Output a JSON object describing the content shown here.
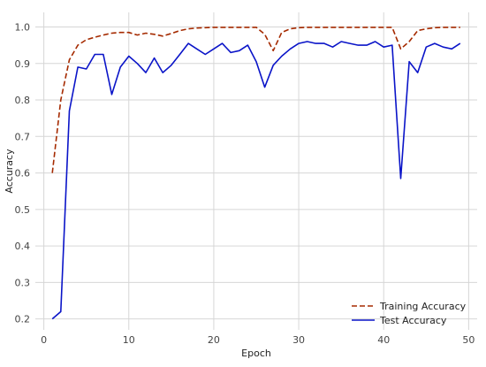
{
  "chart_data": {
    "type": "line",
    "xlabel": "Epoch",
    "ylabel": "Accuracy",
    "xlim": [
      -1,
      51
    ],
    "ylim": [
      0.17,
      1.04
    ],
    "xticks": [
      0,
      10,
      20,
      30,
      40,
      50
    ],
    "yticks": [
      0.2,
      0.3,
      0.4,
      0.5,
      0.6,
      0.7,
      0.8,
      0.9,
      1.0
    ],
    "grid": true,
    "legend_position": "bottom-right",
    "x": [
      1,
      2,
      3,
      4,
      5,
      6,
      7,
      8,
      9,
      10,
      11,
      12,
      13,
      14,
      15,
      16,
      17,
      18,
      19,
      20,
      21,
      22,
      23,
      24,
      25,
      26,
      27,
      28,
      29,
      30,
      31,
      32,
      33,
      34,
      35,
      36,
      37,
      38,
      39,
      40,
      41,
      42,
      43,
      44,
      45,
      46,
      47,
      48,
      49
    ],
    "series": [
      {
        "name": "Training Accuracy",
        "color": "#a52a00",
        "dash": "dashed",
        "values": [
          0.6,
          0.8,
          0.91,
          0.95,
          0.965,
          0.972,
          0.978,
          0.983,
          0.985,
          0.985,
          0.978,
          0.983,
          0.98,
          0.975,
          0.982,
          0.99,
          0.995,
          0.997,
          0.998,
          0.999,
          0.999,
          0.999,
          0.999,
          0.999,
          0.999,
          0.98,
          0.935,
          0.985,
          0.995,
          0.998,
          0.999,
          0.999,
          0.999,
          0.999,
          0.999,
          0.999,
          0.999,
          0.999,
          0.999,
          0.999,
          0.999,
          0.94,
          0.96,
          0.99,
          0.995,
          0.998,
          0.999,
          0.999,
          0.999
        ]
      },
      {
        "name": "Test Accuracy",
        "color": "#0a14c8",
        "dash": "solid",
        "values": [
          0.2,
          0.22,
          0.77,
          0.89,
          0.885,
          0.925,
          0.925,
          0.815,
          0.89,
          0.92,
          0.9,
          0.875,
          0.915,
          0.875,
          0.895,
          0.925,
          0.955,
          0.94,
          0.925,
          0.94,
          0.955,
          0.93,
          0.935,
          0.95,
          0.905,
          0.835,
          0.895,
          0.92,
          0.94,
          0.955,
          0.96,
          0.955,
          0.955,
          0.945,
          0.96,
          0.955,
          0.95,
          0.95,
          0.96,
          0.945,
          0.95,
          0.585,
          0.905,
          0.875,
          0.945,
          0.955,
          0.945,
          0.94,
          0.955
        ]
      }
    ]
  }
}
